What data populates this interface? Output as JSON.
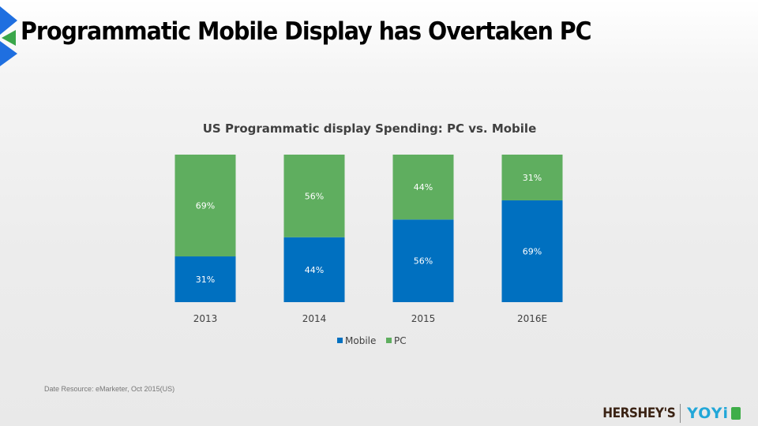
{
  "slide": {
    "title": "Programmatic  Mobile Display has Overtaken PC",
    "source_note": "Date Resource: eMarketer, Oct 2015(US)"
  },
  "logos": {
    "hersheys": "HERSHEY'S",
    "yoyi": "YOYi"
  },
  "colors": {
    "mobile": "#0070c0",
    "pc": "#5fae5f",
    "arrow_blue": "#1f6fe0",
    "arrow_green": "#3aa64a"
  },
  "chart_data": {
    "type": "bar",
    "stacked": true,
    "title": "US Programmatic display Spending: PC vs. Mobile",
    "categories": [
      "2013",
      "2014",
      "2015",
      "2016E"
    ],
    "series": [
      {
        "name": "Mobile",
        "values": [
          31,
          44,
          56,
          69
        ],
        "labels": [
          "31%",
          "44%",
          "56%",
          "69%"
        ]
      },
      {
        "name": "PC",
        "values": [
          69,
          56,
          44,
          31
        ],
        "labels": [
          "69%",
          "56%",
          "44%",
          "31%"
        ]
      }
    ],
    "ylim": [
      0,
      100
    ],
    "grid": false,
    "legend": "bottom"
  }
}
